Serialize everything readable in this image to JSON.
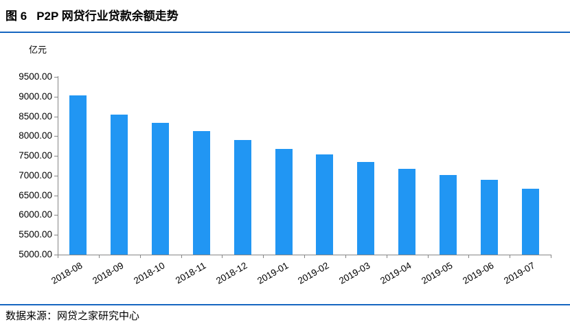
{
  "figure": {
    "label": "图 6",
    "title": "P2P 网贷行业贷款余额走势"
  },
  "chart_data": {
    "type": "bar",
    "title": "P2P 网贷行业贷款余额走势",
    "ylabel": "亿元",
    "xlabel": "",
    "categories": [
      "2018-08",
      "2018-09",
      "2018-10",
      "2018-11",
      "2018-12",
      "2019-01",
      "2019-02",
      "2019-03",
      "2019-04",
      "2019-05",
      "2019-06",
      "2019-07"
    ],
    "values": [
      9030,
      8540,
      8330,
      8130,
      7900,
      7680,
      7530,
      7350,
      7170,
      7010,
      6900,
      6670
    ],
    "ylim": [
      5000,
      9500
    ],
    "ytick_step": 500,
    "ytick_labels": [
      "9500.00",
      "9000.00",
      "8500.00",
      "8000.00",
      "7500.00",
      "7000.00",
      "6500.00",
      "6000.00",
      "5500.00",
      "5000.00"
    ],
    "grid": "off",
    "legend": "none",
    "bar_color": "#2196f3"
  },
  "footer": {
    "source": "数据来源：网贷之家研究中心"
  },
  "colors": {
    "rule_blue": "#1565c0",
    "bar_blue": "#2196f3",
    "axis_gray": "#858585"
  }
}
